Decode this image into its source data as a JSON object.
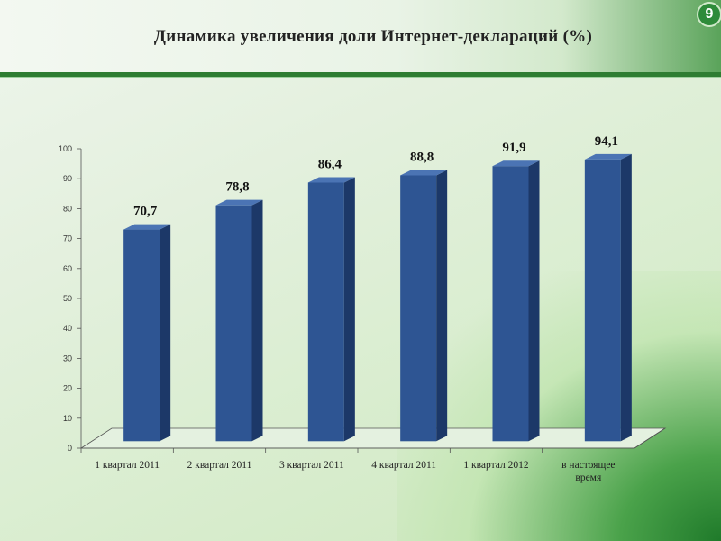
{
  "slide": {
    "title": "Динамика увеличения доли Интернет-деклараций (%)",
    "number": "9"
  },
  "chart_data": {
    "type": "bar",
    "categories": [
      [
        "1 квартал 2011"
      ],
      [
        "2 квартал 2011"
      ],
      [
        "3 квартал 2011"
      ],
      [
        "4 квартал 2011"
      ],
      [
        "1 квартал 2012"
      ],
      [
        "в настоящее",
        "время"
      ]
    ],
    "values": [
      70.7,
      78.8,
      86.4,
      88.8,
      91.9,
      94.1
    ],
    "value_labels": [
      "70,7",
      "78,8",
      "86,4",
      "88,8",
      "91,9",
      "94,1"
    ],
    "ylim": [
      0,
      100
    ],
    "yticks": [
      0,
      10,
      20,
      30,
      40,
      50,
      60,
      70,
      80,
      90,
      100
    ],
    "bar_color": "#2e5593",
    "grid": false,
    "legend": "none"
  }
}
